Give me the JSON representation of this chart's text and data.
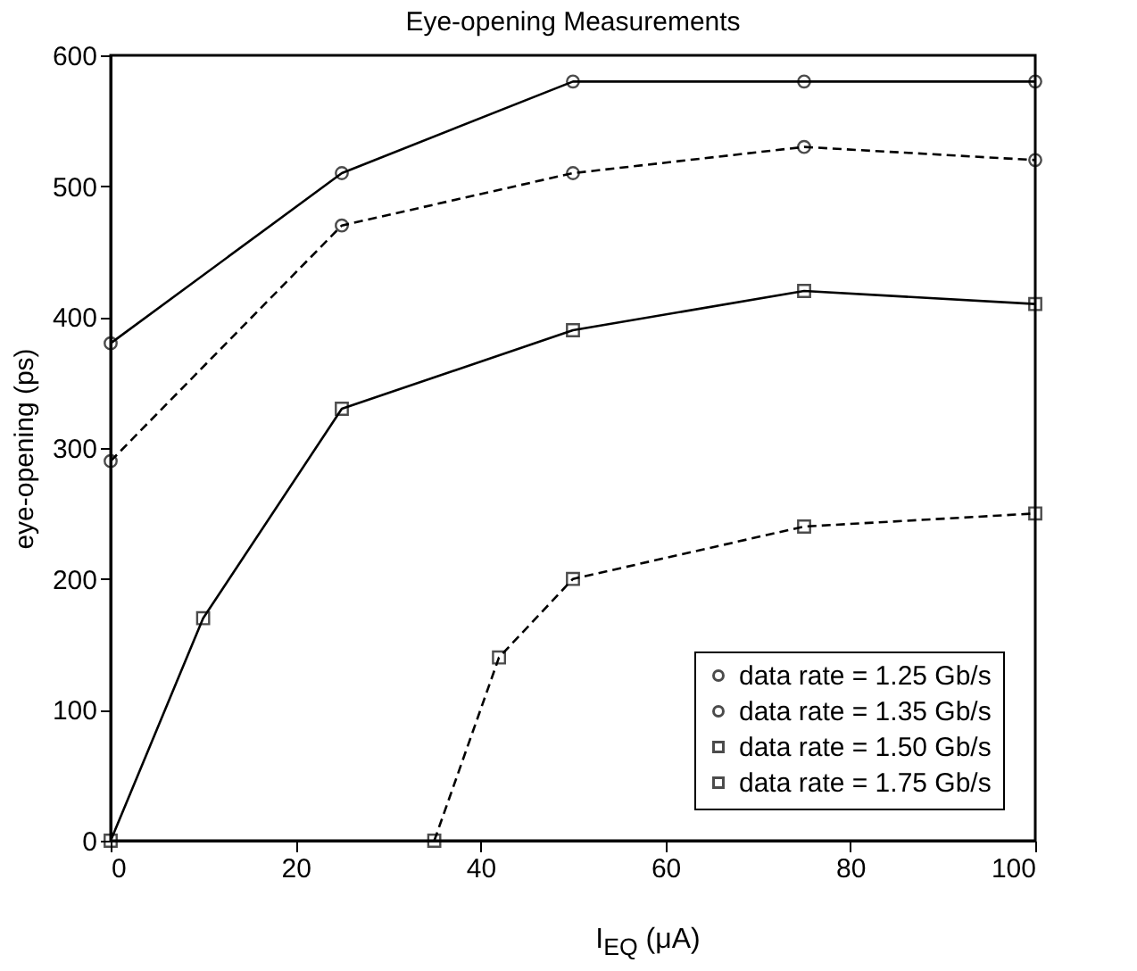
{
  "chart_data": {
    "type": "line",
    "title": "Eye-opening Measurements",
    "xlabel": "I$_{EQ}$ (μA)",
    "ylabel": "eye-opening (ps)",
    "xlim": [
      0,
      100
    ],
    "xticks": [
      0,
      20,
      40,
      60,
      80,
      100
    ],
    "ylim": [
      0,
      600
    ],
    "yticks": [
      0,
      100,
      200,
      300,
      400,
      500,
      600
    ],
    "grid": false,
    "legend": "bottom right",
    "series": [
      {
        "name": "data rate = 1.25 Gb/s",
        "color": "#000000",
        "marker": "circle",
        "line_style": "solid",
        "x": [
          0,
          25,
          50,
          75,
          100
        ],
        "values": [
          380,
          510,
          580,
          580,
          580
        ]
      },
      {
        "name": "data rate = 1.35 Gb/s",
        "color": "#000000",
        "marker": "circle",
        "line_style": "dashed",
        "x": [
          0,
          25,
          50,
          75,
          100
        ],
        "values": [
          290,
          470,
          510,
          530,
          520
        ]
      },
      {
        "name": "data rate = 1.50 Gb/s",
        "color": "#000000",
        "marker": "square",
        "line_style": "solid",
        "x": [
          0,
          10,
          25,
          50,
          75,
          100
        ],
        "values": [
          0,
          170,
          330,
          390,
          420,
          410
        ]
      },
      {
        "name": "data rate = 1.75 Gb/s",
        "color": "#000000",
        "marker": "square",
        "line_style": "dashed",
        "x": [
          35,
          42,
          50,
          75,
          100
        ],
        "values": [
          0,
          140,
          200,
          240,
          250
        ]
      }
    ]
  }
}
